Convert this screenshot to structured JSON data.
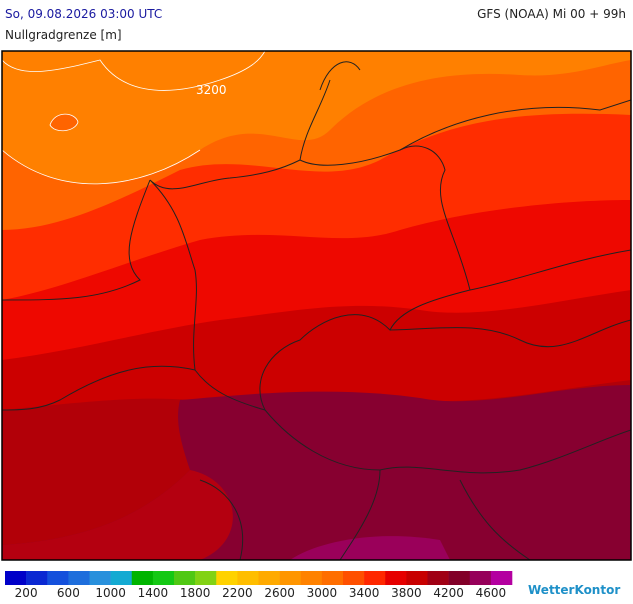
{
  "header": {
    "left": "So, 09.08.2026 03:00 UTC",
    "right": "GFS (NOAA) Mi 00 + 99h",
    "subtitle": "Nullgradgrenze [m]"
  },
  "map": {
    "contour_label": "3200"
  },
  "legend": {
    "labels": [
      "200",
      "600",
      "1000",
      "1400",
      "1800",
      "2200",
      "2600",
      "3000",
      "3400",
      "3800",
      "4200",
      "4600"
    ],
    "colors": [
      "#0000c8",
      "#0a28d2",
      "#1450dc",
      "#1e6edc",
      "#2890dc",
      "#14aad2",
      "#00b400",
      "#14c814",
      "#50c814",
      "#82d214",
      "#ffd200",
      "#ffbe00",
      "#ffaa00",
      "#ff9600",
      "#ff8200",
      "#ff6e00",
      "#ff5000",
      "#ff2800",
      "#e60000",
      "#c80000",
      "#a00014",
      "#820028",
      "#96005a",
      "#b400a0"
    ]
  },
  "brand": "WetterKontor"
}
